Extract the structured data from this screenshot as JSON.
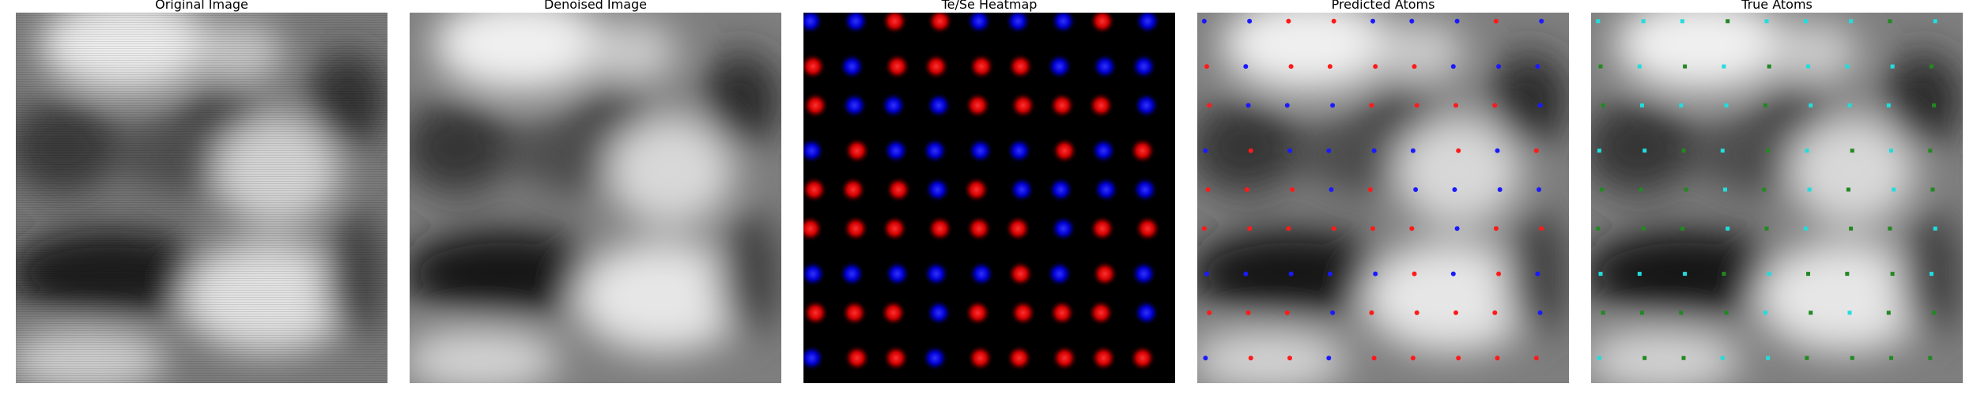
{
  "panels": [
    {
      "title": "Original Image",
      "kind": "noisy"
    },
    {
      "title": "Denoised Image",
      "kind": "denoised"
    },
    {
      "title": "Te/Se Heatmap",
      "kind": "heatmap"
    },
    {
      "title": "Predicted Atoms",
      "kind": "predicted"
    },
    {
      "title": "True Atoms",
      "kind": "true"
    }
  ],
  "legend_colors": {
    "te": "#ff1a1a",
    "se": "#1a1aff",
    "true_a": "#22dddd",
    "true_b": "#228822"
  },
  "atom_grid": {
    "rows": 9,
    "cols": 9,
    "pattern": [
      "bbrrbbbrb",
      "rbrrrrbbb",
      "rbbbrrrrb",
      "brbbbbrbr",
      "rrrbrbbbb",
      "rrrrrrbrr",
      "bbbbbrbrb",
      "rrrbrrrrb",
      "brrbrrrrr"
    ],
    "true_pattern": [
      "cccgcccgc",
      "gcgcgcccg",
      "gcccgcccg",
      "ccgcgcgcg",
      "gggcgcgcg",
      "gggcgcggc",
      "cccgcgggc",
      "ggggcgcgg",
      "cggccgggg"
    ]
  }
}
